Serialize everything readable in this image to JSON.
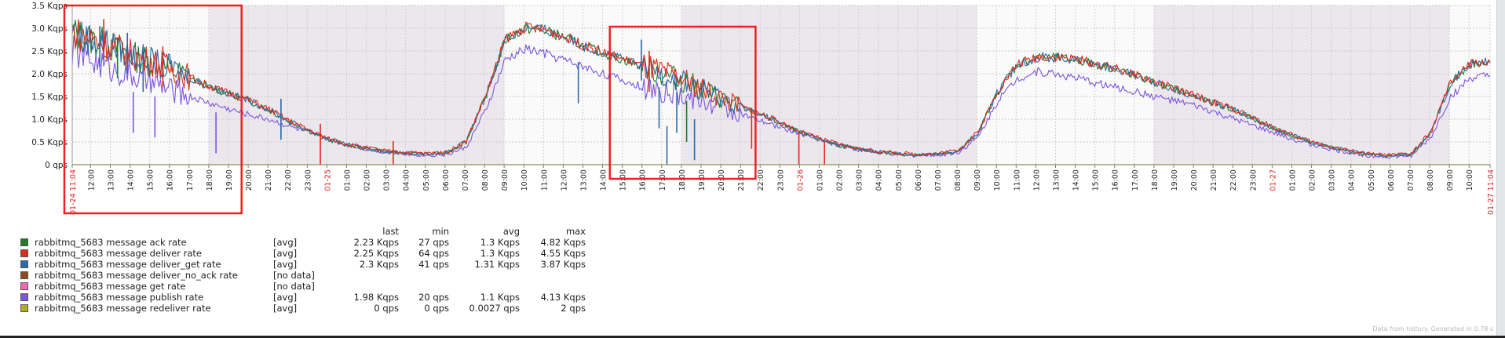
{
  "chart_data": {
    "type": "line",
    "y_ticks": [
      "3.5 Kqps",
      "3.0 Kqps",
      "2.5 Kqps",
      "2.0 Kqps",
      "1.5 Kqps",
      "1.0 Kqps",
      "0.5 Kqps",
      "0 qps"
    ],
    "ylim": [
      0,
      3500
    ],
    "x_ticks": [
      {
        "label": "01-24 11:04",
        "red": true
      },
      {
        "label": "12:00"
      },
      {
        "label": "13:00"
      },
      {
        "label": "14:00"
      },
      {
        "label": "15:00"
      },
      {
        "label": "16:00"
      },
      {
        "label": "17:00"
      },
      {
        "label": "18:00"
      },
      {
        "label": "19:00"
      },
      {
        "label": "20:00"
      },
      {
        "label": "21:00"
      },
      {
        "label": "22:00"
      },
      {
        "label": "23:00"
      },
      {
        "label": "01-25",
        "red": true
      },
      {
        "label": "01:00"
      },
      {
        "label": "02:00"
      },
      {
        "label": "03:00"
      },
      {
        "label": "04:00"
      },
      {
        "label": "05:00"
      },
      {
        "label": "06:00"
      },
      {
        "label": "07:00"
      },
      {
        "label": "08:00"
      },
      {
        "label": "09:00"
      },
      {
        "label": "10:00"
      },
      {
        "label": "11:00"
      },
      {
        "label": "12:00"
      },
      {
        "label": "13:00"
      },
      {
        "label": "14:00"
      },
      {
        "label": "15:00"
      },
      {
        "label": "16:00"
      },
      {
        "label": "17:00"
      },
      {
        "label": "18:00"
      },
      {
        "label": "19:00"
      },
      {
        "label": "20:00"
      },
      {
        "label": "21:00"
      },
      {
        "label": "22:00"
      },
      {
        "label": "23:00"
      },
      {
        "label": "01-26",
        "red": true
      },
      {
        "label": "01:00"
      },
      {
        "label": "02:00"
      },
      {
        "label": "03:00"
      },
      {
        "label": "04:00"
      },
      {
        "label": "05:00"
      },
      {
        "label": "06:00"
      },
      {
        "label": "07:00"
      },
      {
        "label": "08:00"
      },
      {
        "label": "09:00"
      },
      {
        "label": "10:00"
      },
      {
        "label": "11:00"
      },
      {
        "label": "12:00"
      },
      {
        "label": "13:00"
      },
      {
        "label": "14:00"
      },
      {
        "label": "15:00"
      },
      {
        "label": "16:00"
      },
      {
        "label": "17:00"
      },
      {
        "label": "18:00"
      },
      {
        "label": "19:00"
      },
      {
        "label": "20:00"
      },
      {
        "label": "21:00"
      },
      {
        "label": "22:00"
      },
      {
        "label": "23:00"
      },
      {
        "label": "01-27",
        "red": true
      },
      {
        "label": "01:00"
      },
      {
        "label": "02:00"
      },
      {
        "label": "03:00"
      },
      {
        "label": "04:00"
      },
      {
        "label": "05:00"
      },
      {
        "label": "06:00"
      },
      {
        "label": "07:00"
      },
      {
        "label": "08:00"
      },
      {
        "label": "09:00"
      },
      {
        "label": "10:00"
      },
      {
        "label": "01-27 11:04",
        "red": true
      }
    ],
    "x_range_hours": [
      0,
      72
    ],
    "shaded_bands_hours": [
      [
        6.93,
        21.93
      ],
      [
        30.93,
        45.93
      ],
      [
        54.93,
        69.93
      ]
    ],
    "series": [
      {
        "name": "rabbitmq_5683 message ack rate",
        "color": "#1f7a2a",
        "func": "[avg]",
        "last": "2.23 Kqps",
        "min": "27 qps",
        "avg": "1.3 Kqps",
        "max": "4.82 Kqps",
        "x": [
          0,
          1,
          2,
          3,
          4,
          5,
          6,
          7,
          8,
          9,
          10,
          11,
          12,
          13,
          14,
          15,
          16,
          17,
          18,
          19,
          20,
          21,
          22,
          23,
          24,
          25,
          26,
          27,
          28,
          29,
          30,
          31,
          32,
          33,
          34,
          35,
          36,
          37,
          38,
          39,
          40,
          41,
          42,
          43,
          44,
          45,
          46,
          47,
          48,
          49,
          50,
          51,
          52,
          53,
          54,
          55,
          56,
          57,
          58,
          59,
          60,
          61,
          62,
          63,
          64,
          65,
          66,
          67,
          68,
          69,
          70,
          71,
          72
        ],
        "y": [
          2900,
          2750,
          2600,
          2400,
          2250,
          2100,
          1900,
          1700,
          1550,
          1400,
          1200,
          950,
          750,
          550,
          430,
          350,
          280,
          250,
          230,
          250,
          500,
          1500,
          2750,
          3000,
          2950,
          2800,
          2600,
          2450,
          2300,
          2150,
          2000,
          1850,
          1650,
          1450,
          1250,
          1100,
          900,
          700,
          550,
          420,
          330,
          270,
          230,
          210,
          230,
          300,
          700,
          1600,
          2200,
          2350,
          2350,
          2300,
          2200,
          2100,
          1950,
          1800,
          1650,
          1500,
          1350,
          1200,
          1000,
          800,
          620,
          480,
          370,
          280,
          210,
          190,
          230,
          700,
          1800,
          2200,
          2250
        ]
      },
      {
        "name": "rabbitmq_5683 message deliver rate",
        "color": "#e02a1a",
        "func": "[avg]",
        "last": "2.25 Kqps",
        "min": "64 qps",
        "avg": "1.3 Kqps",
        "max": "4.55 Kqps",
        "x": [
          0,
          1,
          2,
          3,
          4,
          5,
          6,
          7,
          8,
          9,
          10,
          11,
          12,
          13,
          14,
          15,
          16,
          17,
          18,
          19,
          20,
          21,
          22,
          23,
          24,
          25,
          26,
          27,
          28,
          29,
          30,
          31,
          32,
          33,
          34,
          35,
          36,
          37,
          38,
          39,
          40,
          41,
          42,
          43,
          44,
          45,
          46,
          47,
          48,
          49,
          50,
          51,
          52,
          53,
          54,
          55,
          56,
          57,
          58,
          59,
          60,
          61,
          62,
          63,
          64,
          65,
          66,
          67,
          68,
          69,
          70,
          71,
          72
        ],
        "y": [
          2920,
          2770,
          2620,
          2420,
          2270,
          2120,
          1920,
          1720,
          1570,
          1420,
          1220,
          970,
          770,
          570,
          450,
          370,
          300,
          270,
          250,
          270,
          520,
          1520,
          2770,
          3020,
          2970,
          2820,
          2620,
          2470,
          2320,
          2170,
          2020,
          1870,
          1670,
          1470,
          1270,
          1120,
          920,
          720,
          570,
          440,
          350,
          290,
          250,
          230,
          250,
          320,
          720,
          1620,
          2220,
          2370,
          2370,
          2320,
          2220,
          2120,
          1970,
          1820,
          1670,
          1520,
          1370,
          1220,
          1020,
          820,
          640,
          500,
          390,
          300,
          230,
          210,
          250,
          720,
          1820,
          2220,
          2270
        ]
      },
      {
        "name": "rabbitmq_5683 message deliver_get rate",
        "color": "#2b6aa8",
        "func": "[avg]",
        "last": "2.3 Kqps",
        "min": "41 qps",
        "avg": "1.31 Kqps",
        "max": "3.87 Kqps",
        "x": [
          0,
          1,
          2,
          3,
          4,
          5,
          6,
          7,
          8,
          9,
          10,
          11,
          12,
          13,
          14,
          15,
          16,
          17,
          18,
          19,
          20,
          21,
          22,
          23,
          24,
          25,
          26,
          27,
          28,
          29,
          30,
          31,
          32,
          33,
          34,
          35,
          36,
          37,
          38,
          39,
          40,
          41,
          42,
          43,
          44,
          45,
          46,
          47,
          48,
          49,
          50,
          51,
          52,
          53,
          54,
          55,
          56,
          57,
          58,
          59,
          60,
          61,
          62,
          63,
          64,
          65,
          66,
          67,
          68,
          69,
          70,
          71,
          72
        ],
        "y": [
          2910,
          2760,
          2610,
          2410,
          2260,
          2110,
          1910,
          1710,
          1560,
          1410,
          1210,
          960,
          760,
          560,
          440,
          360,
          290,
          260,
          240,
          260,
          510,
          1510,
          2760,
          3010,
          2960,
          2810,
          2610,
          2460,
          2310,
          2160,
          2010,
          1860,
          1660,
          1460,
          1260,
          1110,
          910,
          710,
          560,
          430,
          340,
          280,
          240,
          220,
          240,
          310,
          710,
          1610,
          2210,
          2360,
          2360,
          2310,
          2210,
          2110,
          1960,
          1810,
          1660,
          1510,
          1360,
          1210,
          1010,
          810,
          630,
          490,
          380,
          290,
          220,
          200,
          240,
          710,
          1810,
          2210,
          2260
        ]
      },
      {
        "name": "rabbitmq_5683 message deliver_no_ack rate",
        "color": "#8c4a1e",
        "func": "[no data]"
      },
      {
        "name": "rabbitmq_5683 message get rate",
        "color": "#f06ab0",
        "func": "[no data]"
      },
      {
        "name": "rabbitmq_5683 message publish rate",
        "color": "#7b55e0",
        "func": "[avg]",
        "last": "1.98 Kqps",
        "min": "20 qps",
        "avg": "1.1 Kqps",
        "max": "4.13 Kqps",
        "x": [
          0,
          1,
          2,
          3,
          4,
          5,
          6,
          7,
          8,
          9,
          10,
          11,
          12,
          13,
          14,
          15,
          16,
          17,
          18,
          19,
          20,
          21,
          22,
          23,
          24,
          25,
          26,
          27,
          28,
          29,
          30,
          31,
          32,
          33,
          34,
          35,
          36,
          37,
          38,
          39,
          40,
          41,
          42,
          43,
          44,
          45,
          46,
          47,
          48,
          49,
          50,
          51,
          52,
          53,
          54,
          55,
          56,
          57,
          58,
          59,
          60,
          61,
          62,
          63,
          64,
          65,
          66,
          67,
          68,
          69,
          70,
          71,
          72
        ],
        "y": [
          2500,
          2300,
          2100,
          1950,
          1800,
          1650,
          1500,
          1350,
          1220,
          1100,
          1000,
          850,
          700,
          550,
          430,
          340,
          270,
          230,
          210,
          220,
          380,
          1200,
          2300,
          2550,
          2450,
          2300,
          2150,
          2000,
          1850,
          1700,
          1600,
          1500,
          1400,
          1250,
          1100,
          950,
          820,
          680,
          540,
          420,
          320,
          260,
          220,
          200,
          210,
          270,
          600,
          1400,
          1900,
          2050,
          2000,
          1900,
          1800,
          1700,
          1600,
          1500,
          1400,
          1300,
          1150,
          1000,
          850,
          700,
          560,
          430,
          330,
          250,
          190,
          170,
          200,
          600,
          1500,
          1900,
          1950
        ]
      },
      {
        "name": "rabbitmq_5683 message redeliver rate",
        "color": "#b5a82e",
        "func": "[avg]",
        "last": "0 qps",
        "min": "0 qps",
        "avg": "0.0027 qps",
        "max": "2 qps",
        "x": [
          0,
          72
        ],
        "y": [
          0,
          0
        ]
      }
    ],
    "spikes": [
      {
        "series": 2,
        "x": 1.4,
        "y": 3050
      },
      {
        "series": 1,
        "x": 1.6,
        "y": 3200
      },
      {
        "series": 0,
        "x": 2.3,
        "y": 2800
      },
      {
        "series": 2,
        "x": 2.8,
        "y": 2900
      },
      {
        "series": 5,
        "x": 3.1,
        "y": 1600
      },
      {
        "series": 2,
        "x": 3.6,
        "y": 2500
      },
      {
        "series": 5,
        "x": 4.2,
        "y": 1500
      },
      {
        "series": 1,
        "x": 4.6,
        "y": 2600
      },
      {
        "series": 5,
        "x": 7.3,
        "y": 1150
      },
      {
        "series": 2,
        "x": 10.6,
        "y": 1450
      },
      {
        "series": 1,
        "x": 12.6,
        "y": 900
      },
      {
        "series": 1,
        "x": 16.3,
        "y": 520
      },
      {
        "series": 2,
        "x": 25.7,
        "y": 2250
      },
      {
        "series": 2,
        "x": 28.9,
        "y": 2750
      },
      {
        "series": 1,
        "x": 29.3,
        "y": 2500
      },
      {
        "series": 2,
        "x": 29.8,
        "y": 1700
      },
      {
        "series": 2,
        "x": 30.2,
        "y": 850
      },
      {
        "series": 2,
        "x": 30.7,
        "y": 1600
      },
      {
        "series": 0,
        "x": 31.2,
        "y": 1400
      },
      {
        "series": 2,
        "x": 31.6,
        "y": 1000
      },
      {
        "series": 1,
        "x": 34.5,
        "y": 1250
      },
      {
        "series": 1,
        "x": 36.9,
        "y": 700
      },
      {
        "series": 1,
        "x": 38.2,
        "y": 500
      }
    ],
    "annotation_boxes_hours": [
      [
        -0.4,
        8.6
      ],
      [
        27.3,
        34.7
      ]
    ]
  },
  "legend": {
    "headers": {
      "last": "last",
      "min": "min",
      "avg": "avg",
      "max": "max"
    }
  },
  "footer": "Data from history. Generated in 0.78 s"
}
